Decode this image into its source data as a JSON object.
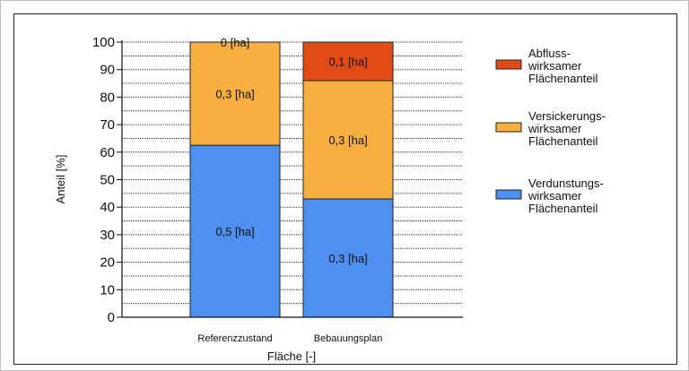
{
  "chart_data": {
    "type": "bar",
    "stacked": true,
    "orientation": "vertical",
    "categories": [
      "Referenzzustand",
      "Bebauungsplan"
    ],
    "series": [
      {
        "name": "Verdunstungs-wirksamer Flächenanteil",
        "legend_lines": [
          "Verdunstungs-",
          "wirksamer",
          "Flächenanteil"
        ],
        "values": [
          62.5,
          43
        ],
        "labels": [
          "0,5 [ha]",
          "0,3 [ha]"
        ],
        "color": "#4f8ff0"
      },
      {
        "name": "Versickerungs-wirksamer Flächenanteil",
        "legend_lines": [
          "Versickerungs-",
          "wirksamer",
          "Flächenanteil"
        ],
        "values": [
          37.5,
          43
        ],
        "labels": [
          "0,3 [ha]",
          "0,3 [ha]"
        ],
        "color": "#f7b040"
      },
      {
        "name": "Abfluss-wirksamer Flächenanteil",
        "legend_lines": [
          "Abfluss-",
          "wirksamer",
          "Flächenanteil"
        ],
        "values": [
          0,
          14
        ],
        "labels": [
          "0 [ha]",
          "0,1 [ha]"
        ],
        "color": "#e24a16"
      }
    ],
    "xlabel": "Fläche [-]",
    "ylabel": "Anteil [%]",
    "ylim": [
      0,
      100
    ],
    "yticks": [
      0,
      10,
      20,
      30,
      40,
      50,
      60,
      70,
      80,
      90,
      100
    ],
    "grid": "dotted horizontal",
    "legend": "right"
  }
}
